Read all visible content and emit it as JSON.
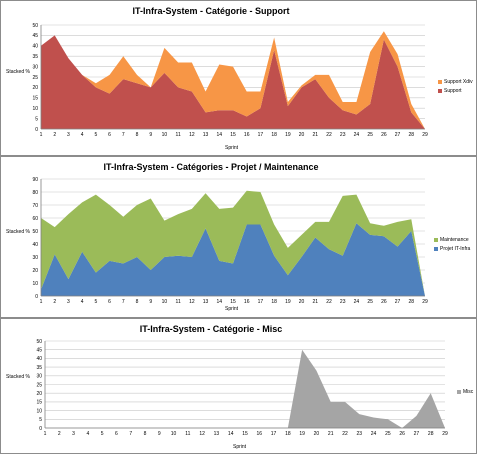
{
  "chart_data": [
    {
      "type": "area",
      "stacked": true,
      "title": "IT-Infra-System - Catégorie - Support",
      "xlabel": "Sprint",
      "ylabel": "Stacked %",
      "ylim": [
        0,
        50
      ],
      "ytick_step": 5,
      "grid": true,
      "legend_position": "right",
      "x": [
        1,
        2,
        3,
        4,
        5,
        6,
        7,
        8,
        9,
        10,
        11,
        12,
        13,
        14,
        15,
        16,
        17,
        18,
        19,
        20,
        21,
        22,
        23,
        24,
        25,
        26,
        27,
        28,
        29
      ],
      "series": [
        {
          "name": "Support",
          "color": "#c0504d",
          "values": [
            40,
            45,
            34,
            26,
            20,
            17,
            24,
            22,
            20,
            27,
            20,
            18,
            8,
            9,
            9,
            6,
            10,
            38,
            11,
            20,
            24,
            15,
            9,
            7,
            12,
            43,
            30,
            8,
            0
          ]
        },
        {
          "name": "Support Xdiv",
          "color": "#f79646",
          "values": [
            0,
            0,
            0,
            0,
            2,
            9,
            11,
            4,
            0,
            12,
            12,
            14,
            10,
            22,
            21,
            12,
            8,
            6,
            2,
            1,
            2,
            11,
            4,
            6,
            25,
            4,
            6,
            4,
            0
          ]
        }
      ]
    },
    {
      "type": "area",
      "stacked": true,
      "title": "IT-Infra-System - Catégories - Projet  / Maintenance",
      "xlabel": "Sprint",
      "ylabel": "Stacked %",
      "ylim": [
        0,
        90
      ],
      "ytick_step": 10,
      "grid": true,
      "legend_position": "right",
      "x": [
        1,
        2,
        3,
        4,
        5,
        6,
        7,
        8,
        9,
        10,
        11,
        12,
        13,
        14,
        15,
        16,
        17,
        18,
        19,
        20,
        21,
        22,
        23,
        24,
        25,
        26,
        27,
        28,
        29
      ],
      "series": [
        {
          "name": "Projet IT-Infra",
          "color": "#4f81bd",
          "values": [
            5,
            32,
            13,
            34,
            18,
            27,
            25,
            30,
            20,
            30,
            31,
            30,
            52,
            27,
            25,
            55,
            55,
            31,
            16,
            30,
            45,
            36,
            31,
            56,
            47,
            46,
            38,
            50,
            0
          ]
        },
        {
          "name": "Maintenance",
          "color": "#9bbb59",
          "values": [
            55,
            21,
            50,
            38,
            60,
            43,
            36,
            40,
            55,
            28,
            32,
            37,
            27,
            40,
            43,
            26,
            25,
            24,
            21,
            17,
            12,
            21,
            46,
            22,
            9,
            8,
            19,
            9,
            0
          ]
        }
      ]
    },
    {
      "type": "area",
      "stacked": true,
      "title": "IT-Infra-System - Catégorie - Misc",
      "xlabel": "Sprint",
      "ylabel": "Stacked %",
      "ylim": [
        0,
        50
      ],
      "ytick_step": 5,
      "grid": true,
      "legend_position": "right",
      "x": [
        1,
        2,
        3,
        4,
        5,
        6,
        7,
        8,
        9,
        10,
        11,
        12,
        13,
        14,
        15,
        16,
        17,
        18,
        19,
        20,
        21,
        22,
        23,
        24,
        25,
        26,
        27,
        28,
        29
      ],
      "series": [
        {
          "name": "Misc",
          "color": "#a5a5a5",
          "values": [
            0,
            0,
            0,
            0,
            0,
            0,
            0,
            0,
            0,
            0,
            0,
            0,
            0,
            0,
            0,
            0,
            0,
            0,
            45,
            33,
            15,
            15,
            8,
            6,
            5,
            0,
            7,
            20,
            0
          ]
        }
      ]
    }
  ]
}
